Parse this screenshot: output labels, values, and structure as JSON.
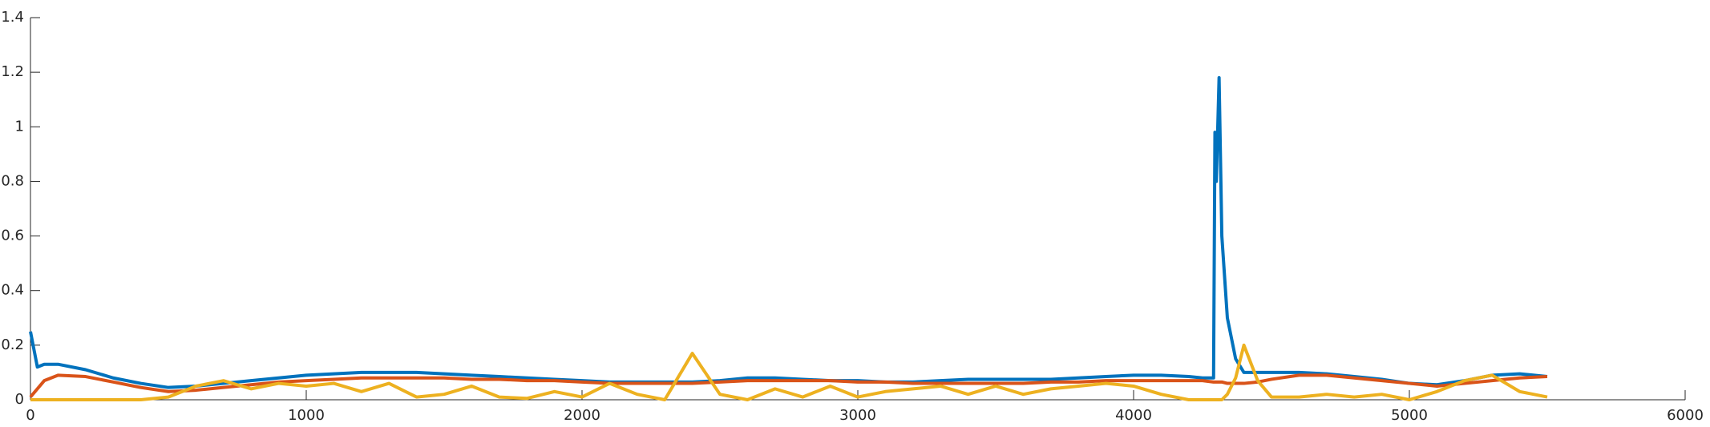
{
  "chart_data": {
    "type": "line",
    "x": [
      0,
      25,
      50,
      100,
      200,
      300,
      400,
      500,
      600,
      700,
      800,
      900,
      1000,
      1100,
      1200,
      1300,
      1400,
      1500,
      1600,
      1700,
      1800,
      1900,
      2000,
      2100,
      2200,
      2300,
      2400,
      2500,
      2600,
      2700,
      2800,
      2900,
      3000,
      3100,
      3200,
      3300,
      3400,
      3500,
      3600,
      3700,
      3800,
      3900,
      4000,
      4100,
      4200,
      4250,
      4290,
      4295,
      4300,
      4310,
      4320,
      4340,
      4370,
      4400,
      4450,
      4500,
      4600,
      4700,
      4800,
      4900,
      5000,
      5100,
      5200,
      5300,
      5400,
      5500
    ],
    "series": [
      {
        "color": "#0072BD",
        "values": [
          0.25,
          0.12,
          0.13,
          0.13,
          0.11,
          0.08,
          0.06,
          0.045,
          0.05,
          0.06,
          0.07,
          0.08,
          0.09,
          0.095,
          0.1,
          0.1,
          0.1,
          0.095,
          0.09,
          0.085,
          0.08,
          0.075,
          0.07,
          0.065,
          0.065,
          0.065,
          0.065,
          0.07,
          0.08,
          0.08,
          0.075,
          0.07,
          0.07,
          0.065,
          0.065,
          0.07,
          0.075,
          0.075,
          0.075,
          0.075,
          0.08,
          0.085,
          0.09,
          0.09,
          0.085,
          0.08,
          0.08,
          0.98,
          0.8,
          1.18,
          0.6,
          0.3,
          0.15,
          0.1,
          0.1,
          0.1,
          0.1,
          0.095,
          0.085,
          0.075,
          0.06,
          0.055,
          0.07,
          0.09,
          0.095,
          0.085
        ]
      },
      {
        "color": "#D95319",
        "values": [
          0.01,
          0.04,
          0.07,
          0.09,
          0.085,
          0.065,
          0.045,
          0.03,
          0.035,
          0.045,
          0.055,
          0.065,
          0.07,
          0.075,
          0.08,
          0.08,
          0.08,
          0.08,
          0.075,
          0.075,
          0.07,
          0.07,
          0.065,
          0.06,
          0.06,
          0.06,
          0.06,
          0.065,
          0.07,
          0.07,
          0.07,
          0.07,
          0.065,
          0.065,
          0.06,
          0.06,
          0.06,
          0.06,
          0.06,
          0.065,
          0.065,
          0.07,
          0.07,
          0.07,
          0.07,
          0.07,
          0.065,
          0.065,
          0.065,
          0.065,
          0.065,
          0.06,
          0.06,
          0.06,
          0.065,
          0.075,
          0.09,
          0.09,
          0.08,
          0.07,
          0.06,
          0.05,
          0.06,
          0.07,
          0.08,
          0.085
        ]
      },
      {
        "color": "#EDB120",
        "values": [
          0,
          0,
          0,
          0,
          0,
          0,
          0,
          0.01,
          0.05,
          0.07,
          0.04,
          0.06,
          0.05,
          0.06,
          0.03,
          0.06,
          0.01,
          0.02,
          0.05,
          0.01,
          0.005,
          0.03,
          0.01,
          0.06,
          0.02,
          0,
          0.17,
          0.02,
          0,
          0.04,
          0.01,
          0.05,
          0.01,
          0.03,
          0.04,
          0.05,
          0.02,
          0.05,
          0.02,
          0.04,
          0.05,
          0.06,
          0.05,
          0.02,
          0,
          0,
          0,
          0,
          0,
          0,
          0,
          0.02,
          0.08,
          0.2,
          0.07,
          0.01,
          0.01,
          0.02,
          0.01,
          0.02,
          0,
          0.03,
          0.07,
          0.09,
          0.03,
          0.01
        ]
      }
    ],
    "xlim": [
      0,
      6000
    ],
    "xticks": [
      0,
      1000,
      2000,
      3000,
      4000,
      5000,
      6000
    ],
    "ylim": [
      0,
      1.4
    ],
    "yticks": [
      0,
      0.2,
      0.4,
      0.6,
      0.8,
      1,
      1.2,
      1.4
    ]
  }
}
